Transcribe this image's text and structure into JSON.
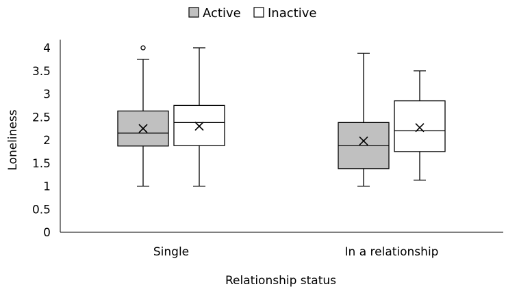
{
  "chart_data": {
    "type": "boxplot",
    "title": "",
    "xlabel": "Relationship status",
    "ylabel": "Loneliness",
    "ylim": [
      0,
      4
    ],
    "yticks": [
      "0",
      "0.5",
      "1",
      "1.5",
      "2",
      "2.5",
      "3",
      "3.5",
      "4"
    ],
    "ytick_values": [
      0,
      0.5,
      1,
      1.5,
      2,
      2.5,
      3,
      3.5,
      4
    ],
    "categories": [
      "Single",
      "In a relationship"
    ],
    "grid": false,
    "legend_position": "top",
    "series": [
      {
        "name": "Active",
        "color": "#c0c0c0",
        "boxes": [
          {
            "min": 1.0,
            "q1": 1.87,
            "median": 2.15,
            "q3": 2.63,
            "max": 3.75,
            "mean": 2.25,
            "outliers": [
              4.0
            ]
          },
          {
            "min": 1.0,
            "q1": 1.38,
            "median": 1.88,
            "q3": 2.38,
            "max": 3.88,
            "mean": 1.98,
            "outliers": []
          }
        ]
      },
      {
        "name": "Inactive",
        "color": "#ffffff",
        "boxes": [
          {
            "min": 1.0,
            "q1": 1.88,
            "median": 2.38,
            "q3": 2.75,
            "max": 4.0,
            "mean": 2.3,
            "outliers": []
          },
          {
            "min": 1.13,
            "q1": 1.75,
            "median": 2.2,
            "q3": 2.85,
            "max": 3.5,
            "mean": 2.27,
            "outliers": []
          }
        ]
      }
    ]
  }
}
